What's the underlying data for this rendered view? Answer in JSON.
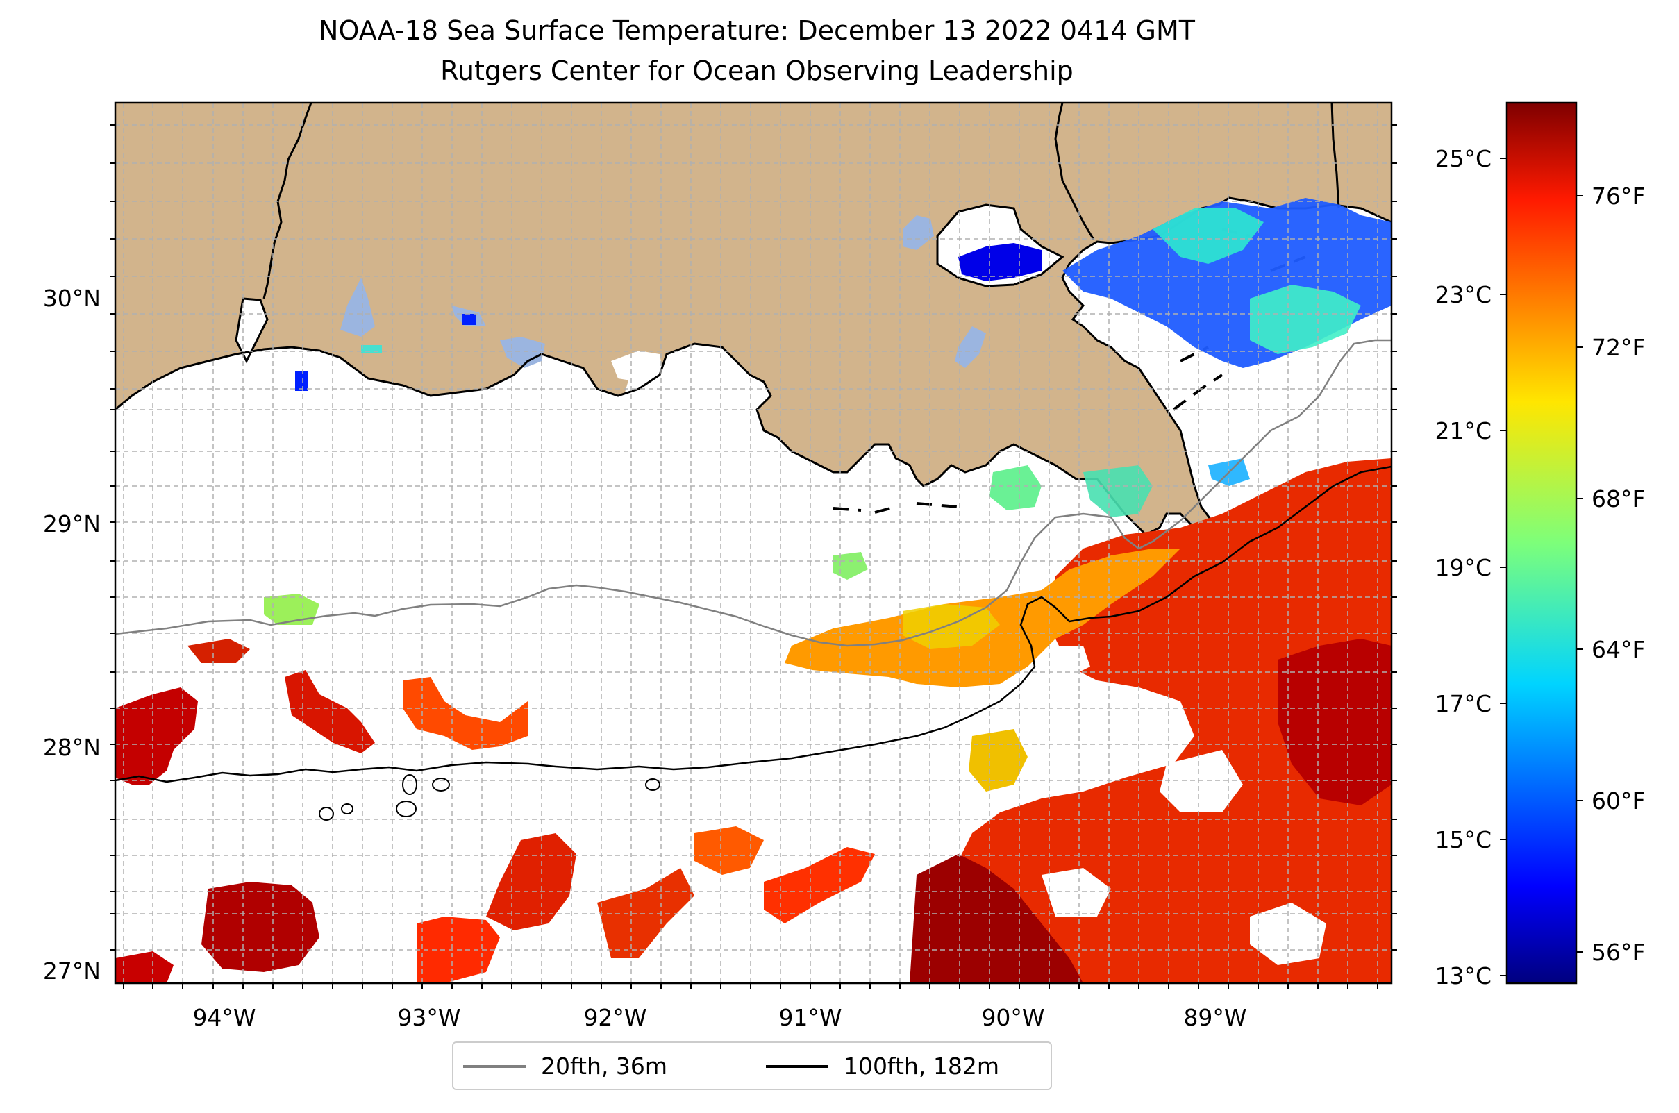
{
  "title": "NOAA-18 Sea Surface Temperature: December 13 2022 0414 GMT",
  "subtitle": "Rutgers Center for Ocean Observing Leadership",
  "lon_labels": [
    "94°W",
    "93°W",
    "92°W",
    "91°W",
    "90°W",
    "89°W"
  ],
  "lat_labels": [
    "30°N",
    "29°N",
    "28°N",
    "27°N"
  ],
  "colorbar": {
    "celsius_labels": [
      "25°C",
      "23°C",
      "21°C",
      "19°C",
      "17°C",
      "15°C",
      "13°C"
    ],
    "fahrenheit_labels": [
      "76°F",
      "72°F",
      "68°F",
      "64°F",
      "60°F",
      "56°F"
    ],
    "range_celsius": [
      13,
      26
    ],
    "colormap": "jet"
  },
  "legend": [
    {
      "label": "20fth, 36m",
      "color": "#808080"
    },
    {
      "label": "100fth, 182m",
      "color": "#000000"
    }
  ],
  "colors": {
    "land": "#d2b48c",
    "lake": "#9bb5e0",
    "water_no_data": "#ffffff",
    "gridline": "#b0b0b0"
  },
  "chart_data": {
    "type": "heatmap",
    "title": "NOAA-18 Sea Surface Temperature: December 13 2022 0414 GMT",
    "subtitle": "Rutgers Center for Ocean Observing Leadership",
    "x_ticks": [
      "94°W",
      "93°W",
      "92°W",
      "91°W",
      "90°W",
      "89°W"
    ],
    "y_ticks": [
      "30°N",
      "29°N",
      "28°N",
      "27°N"
    ],
    "xlim": [
      -94.6,
      -88.2
    ],
    "ylim": [
      26.95,
      30.85
    ],
    "colorbar_range_celsius": [
      13,
      26
    ],
    "grid": true,
    "legend_placement": "bottom-center",
    "series": [
      {
        "name": "20fth, 36m"
      },
      {
        "name": "100fth, 182m"
      }
    ]
  }
}
